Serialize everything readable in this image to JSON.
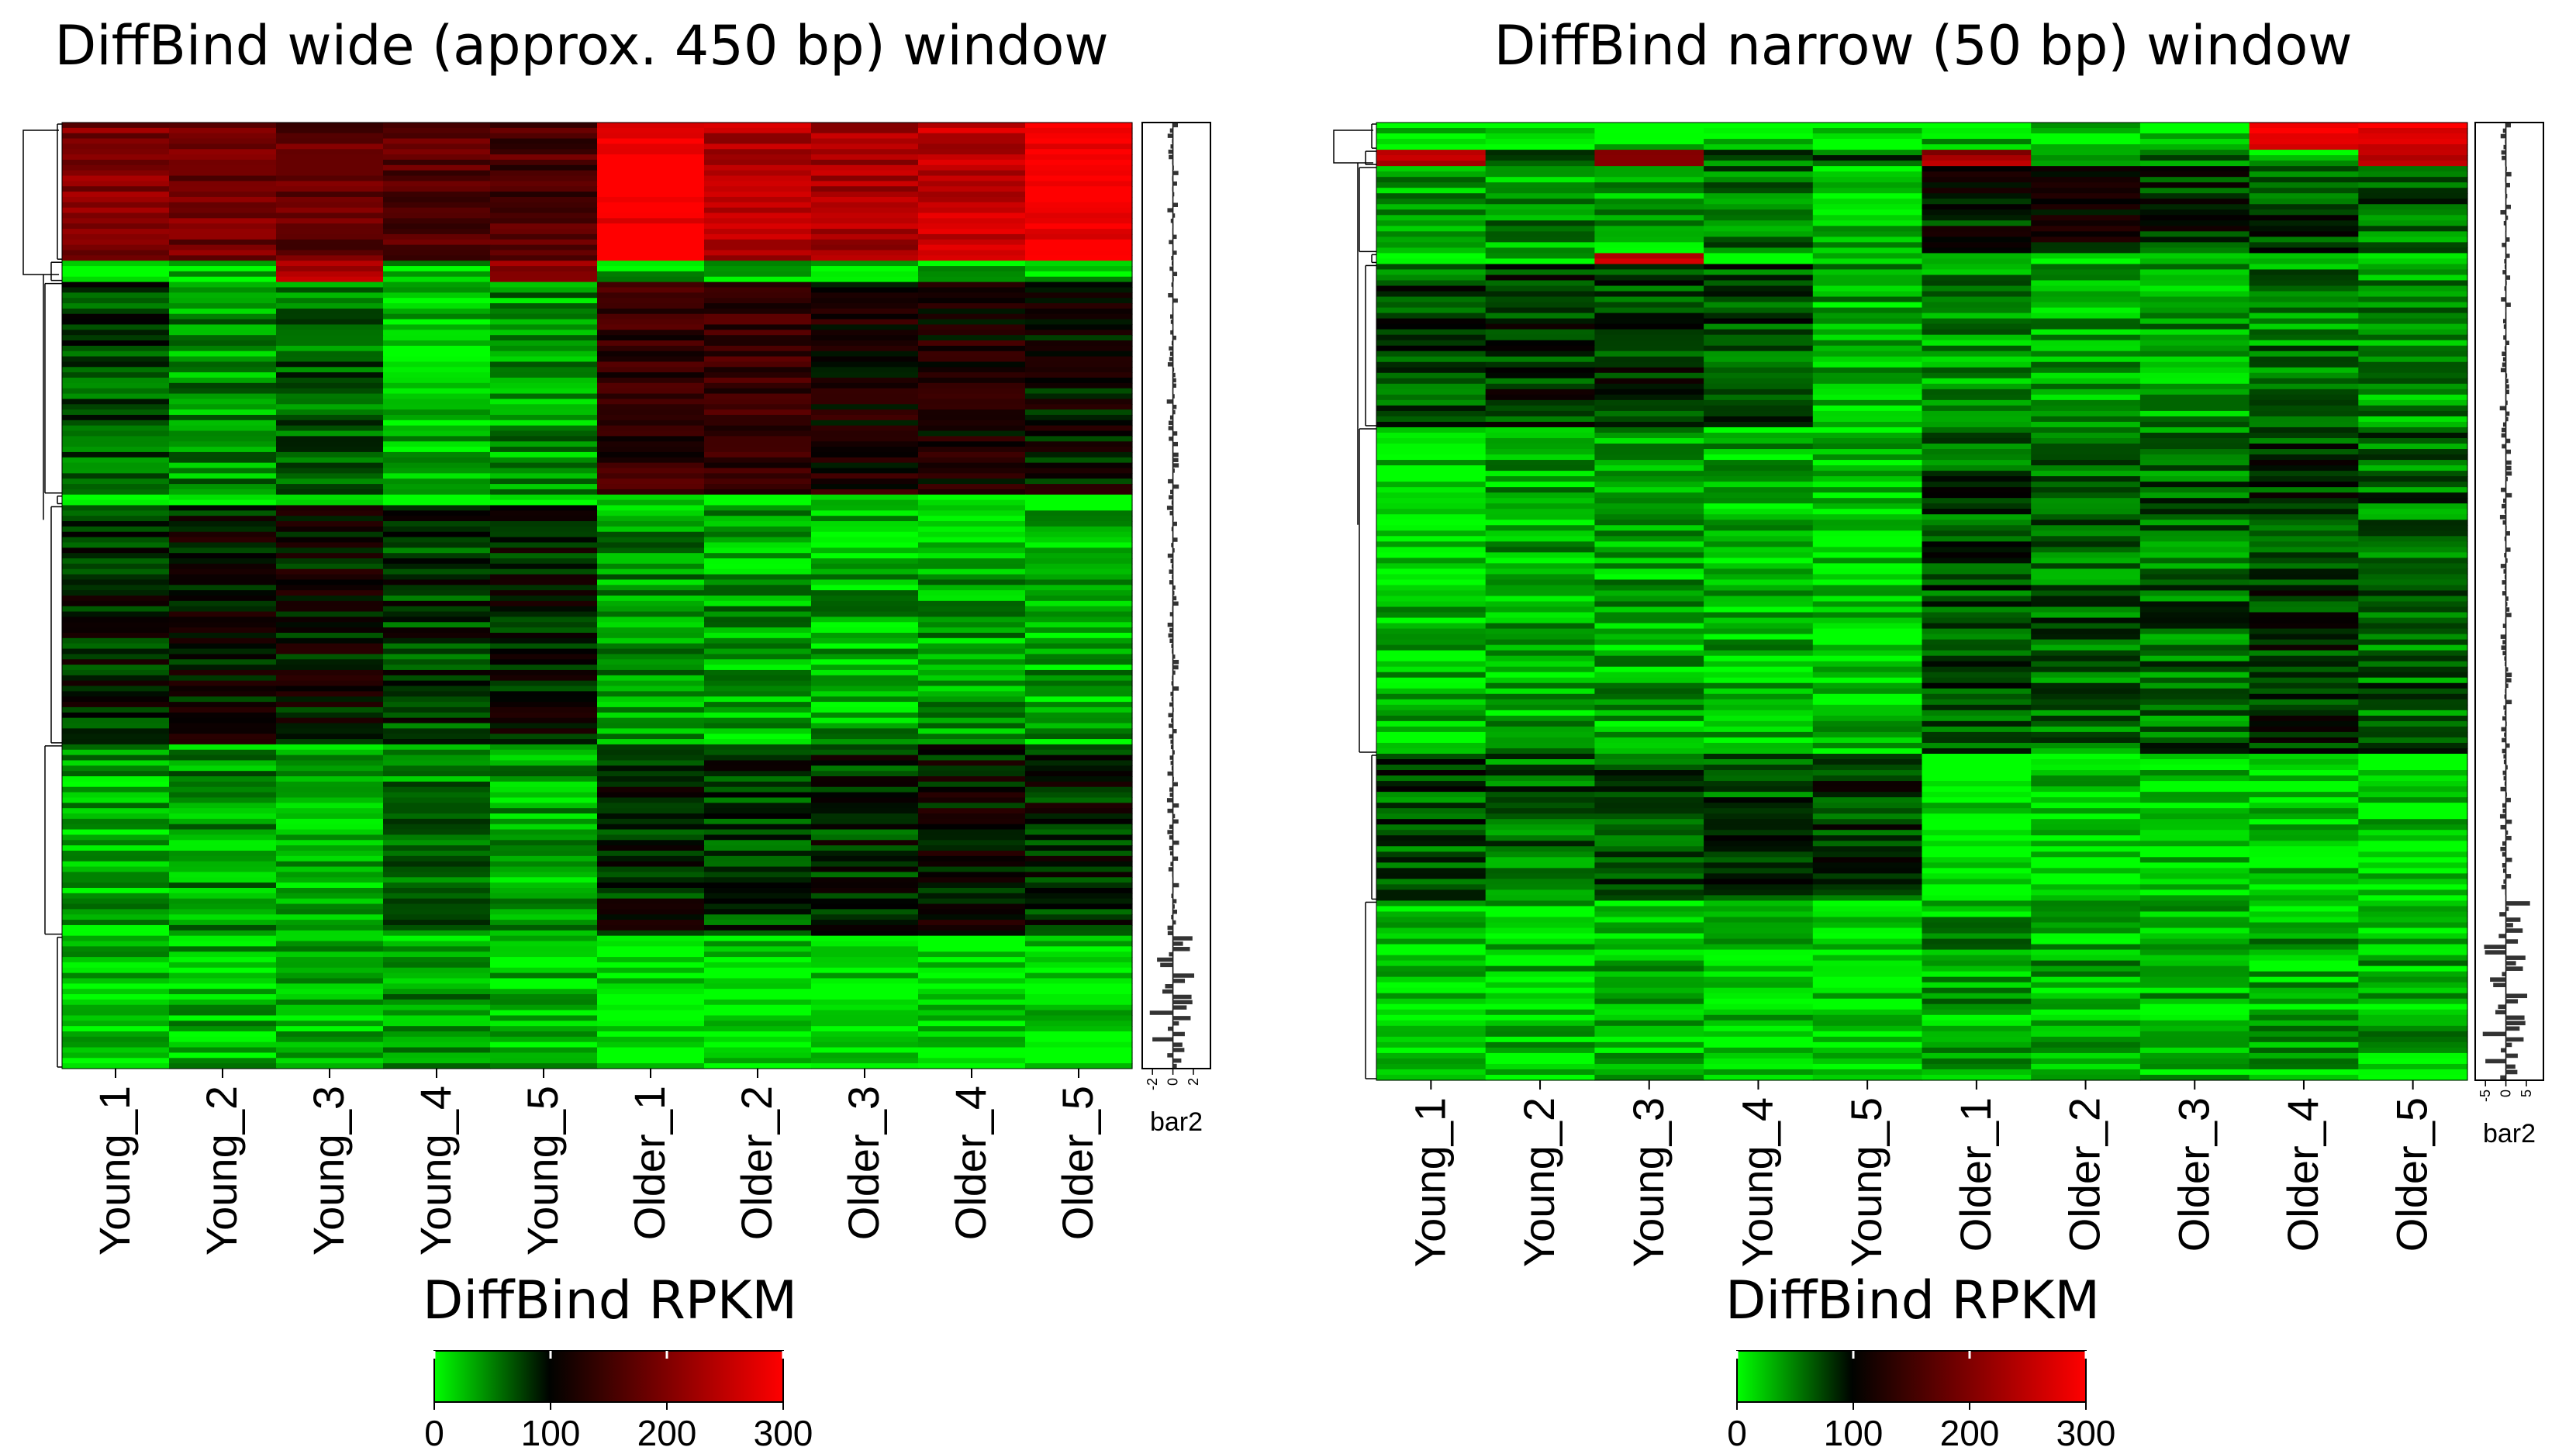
{
  "chart_data": [
    {
      "type": "heatmap",
      "title": "DiffBind wide (approx. 450 bp) window",
      "columns": [
        "Young_1",
        "Young_2",
        "Young_3",
        "Young_4",
        "Young_5",
        "Older_1",
        "Older_2",
        "Older_3",
        "Older_4",
        "Older_5"
      ],
      "row_clusters": [
        {
          "rows": 26,
          "values": [
            200,
            190,
            175,
            170,
            160,
            300,
            240,
            230,
            250,
            300
          ]
        },
        {
          "rows": 4,
          "values": [
            20,
            20,
            240,
            20,
            200,
            20,
            20,
            20,
            20,
            20
          ]
        },
        {
          "rows": 40,
          "values": [
            70,
            40,
            60,
            20,
            40,
            140,
            140,
            120,
            120,
            100
          ]
        },
        {
          "rows": 2,
          "values": [
            5,
            5,
            5,
            5,
            5,
            5,
            5,
            5,
            5,
            5
          ]
        },
        {
          "rows": 45,
          "values": [
            90,
            100,
            100,
            80,
            95,
            40,
            35,
            30,
            35,
            30
          ]
        },
        {
          "rows": 36,
          "values": [
            30,
            40,
            35,
            50,
            35,
            90,
            80,
            85,
            100,
            90
          ]
        },
        {
          "rows": 25,
          "values": [
            20,
            25,
            25,
            35,
            20,
            5,
            10,
            8,
            8,
            10
          ]
        }
      ],
      "side_bar": {
        "label": "bar2",
        "ticks": [
          "-2",
          "0",
          "2"
        ]
      },
      "colorbar": {
        "label": "DiffBind RPKM",
        "ticks": [
          "0",
          "100",
          "200",
          "300"
        ],
        "min": 0,
        "max": 300,
        "low": "#00ff00",
        "mid": "#000000",
        "high": "#ff0000"
      }
    },
    {
      "type": "heatmap",
      "title": "DiffBind narrow (50 bp) window",
      "columns": [
        "Young_1",
        "Young_2",
        "Young_3",
        "Young_4",
        "Young_5",
        "Older_1",
        "Older_2",
        "Older_3",
        "Older_4",
        "Older_5"
      ],
      "row_clusters": [
        {
          "rows": 5,
          "values": [
            10,
            10,
            10,
            10,
            10,
            30,
            10,
            10,
            300,
            280
          ]
        },
        {
          "rows": 3,
          "values": [
            250,
            60,
            200,
            60,
            60,
            220,
            60,
            60,
            20,
            250
          ]
        },
        {
          "rows": 16,
          "values": [
            30,
            40,
            30,
            60,
            20,
            90,
            100,
            80,
            70,
            60
          ]
        },
        {
          "rows": 2,
          "values": [
            15,
            15,
            240,
            15,
            15,
            10,
            10,
            10,
            10,
            10
          ]
        },
        {
          "rows": 30,
          "values": [
            70,
            80,
            80,
            70,
            30,
            40,
            30,
            40,
            50,
            40
          ]
        },
        {
          "rows": 60,
          "values": [
            25,
            30,
            30,
            25,
            20,
            70,
            60,
            60,
            80,
            60
          ]
        },
        {
          "rows": 27,
          "values": [
            70,
            60,
            75,
            70,
            80,
            10,
            20,
            15,
            15,
            15
          ]
        },
        {
          "rows": 33,
          "values": [
            15,
            20,
            25,
            15,
            10,
            35,
            30,
            25,
            30,
            30
          ]
        }
      ],
      "side_bar": {
        "label": "bar2",
        "ticks": [
          "-5",
          "0",
          "5"
        ]
      },
      "colorbar": {
        "label": "DiffBind RPKM",
        "ticks": [
          "0",
          "100",
          "200",
          "300"
        ],
        "min": 0,
        "max": 300,
        "low": "#00ff00",
        "mid": "#000000",
        "high": "#ff0000"
      }
    }
  ]
}
